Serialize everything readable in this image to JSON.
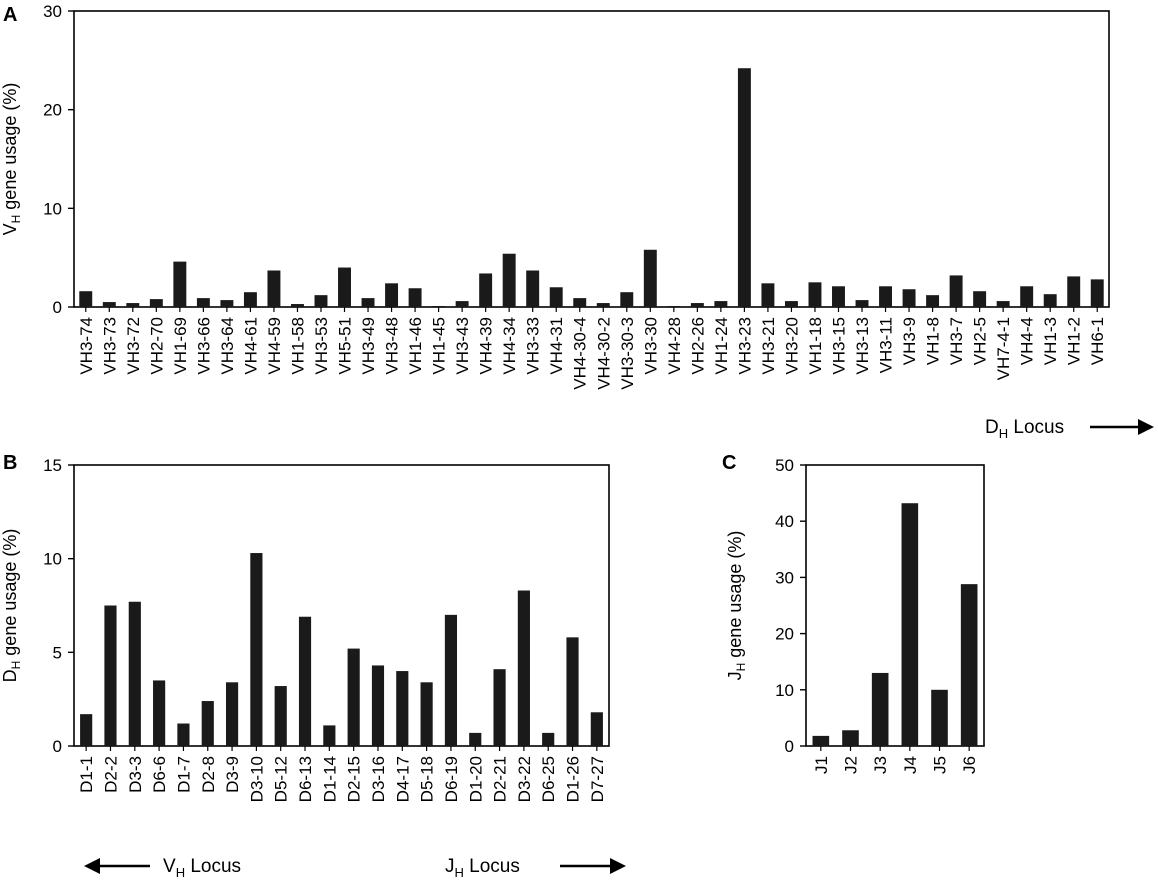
{
  "colors": {
    "bar": "#1a1a1a",
    "axis": "#000000"
  },
  "arrows": {
    "dh_locus": {
      "label": "D",
      "sub": "H",
      "rest": " Locus",
      "direction": "right"
    },
    "vh_locus": {
      "label": "V",
      "sub": "H",
      "rest": " Locus",
      "direction": "left"
    },
    "jh_locus": {
      "label": "J",
      "sub": "H",
      "rest": " Locus",
      "direction": "right"
    }
  },
  "chart_data": [
    {
      "id": "A",
      "panel_label": "A",
      "type": "bar",
      "ylabel": {
        "main": "V",
        "sub": "H",
        "rest": " gene usage (%)"
      },
      "ylim": [
        0,
        30
      ],
      "yticks": [
        0,
        10,
        20,
        30
      ],
      "grid": false,
      "categories": [
        "VH3-74",
        "VH3-73",
        "VH3-72",
        "VH2-70",
        "VH1-69",
        "VH3-66",
        "VH3-64",
        "VH4-61",
        "VH4-59",
        "VH1-58",
        "VH3-53",
        "VH5-51",
        "VH3-49",
        "VH3-48",
        "VH1-46",
        "VH1-45",
        "VH3-43",
        "VH4-39",
        "VH4-34",
        "VH3-33",
        "VH4-31",
        "VH4-30-4",
        "VH4-30-2",
        "VH3-30-3",
        "VH3-30",
        "VH4-28",
        "VH2-26",
        "VH1-24",
        "VH3-23",
        "VH3-21",
        "VH3-20",
        "VH1-18",
        "VH3-15",
        "VH3-13",
        "VH3-11",
        "VH3-9",
        "VH1-8",
        "VH3-7",
        "VH2-5",
        "VH7-4-1",
        "VH4-4",
        "VH1-3",
        "VH1-2",
        "VH6-1"
      ],
      "values": [
        1.6,
        0.5,
        0.4,
        0.8,
        4.6,
        0.9,
        0.7,
        1.5,
        3.7,
        0.3,
        1.2,
        4.0,
        0.9,
        2.4,
        1.9,
        0.1,
        0.6,
        3.4,
        5.4,
        3.7,
        2.0,
        0.9,
        0.4,
        1.5,
        5.8,
        0.1,
        0.4,
        0.6,
        24.2,
        2.4,
        0.6,
        2.5,
        2.1,
        0.7,
        2.1,
        1.8,
        1.2,
        3.2,
        1.6,
        0.6,
        2.1,
        1.3,
        3.1,
        2.8
      ]
    },
    {
      "id": "B",
      "panel_label": "B",
      "type": "bar",
      "ylabel": {
        "main": "D",
        "sub": "H",
        "rest": " gene usage (%)"
      },
      "ylim": [
        0,
        15
      ],
      "yticks": [
        0,
        5,
        10,
        15
      ],
      "grid": false,
      "categories": [
        "D1-1",
        "D2-2",
        "D3-3",
        "D6-6",
        "D1-7",
        "D2-8",
        "D3-9",
        "D3-10",
        "D5-12",
        "D6-13",
        "D1-14",
        "D2-15",
        "D3-16",
        "D4-17",
        "D5-18",
        "D6-19",
        "D1-20",
        "D2-21",
        "D3-22",
        "D6-25",
        "D1-26",
        "D7-27"
      ],
      "values": [
        1.7,
        7.5,
        7.7,
        3.5,
        1.2,
        2.4,
        3.4,
        10.3,
        3.2,
        6.9,
        1.1,
        5.2,
        4.3,
        4.0,
        3.4,
        7.0,
        0.7,
        4.1,
        8.3,
        0.7,
        5.8,
        1.8
      ]
    },
    {
      "id": "C",
      "panel_label": "C",
      "type": "bar",
      "ylabel": {
        "main": "J",
        "sub": "H",
        "rest": " gene usage (%)"
      },
      "ylim": [
        0,
        50
      ],
      "yticks": [
        0,
        10,
        20,
        30,
        40,
        50
      ],
      "grid": false,
      "categories": [
        "J1",
        "J2",
        "J3",
        "J4",
        "J5",
        "J6"
      ],
      "values": [
        1.8,
        2.8,
        13.0,
        43.2,
        10.0,
        28.8
      ]
    }
  ]
}
